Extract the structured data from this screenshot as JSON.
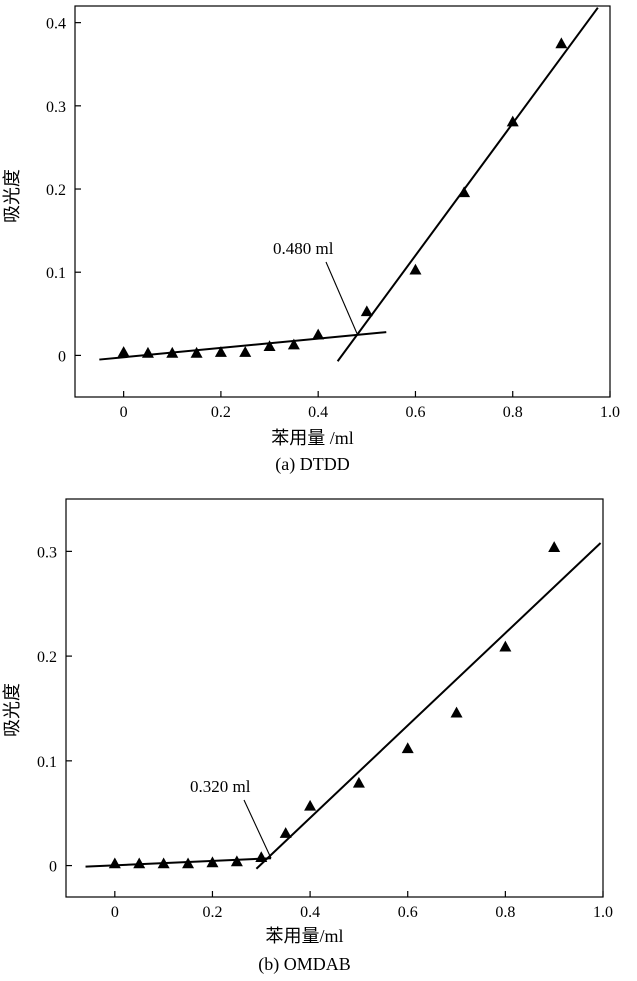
{
  "chart_data": [
    {
      "type": "scatter",
      "caption": "(a) DTDD",
      "xlabel": "苯用量 /ml",
      "ylabel": "吸光度",
      "xlim": [
        -0.1,
        1.0
      ],
      "ylim": [
        -0.05,
        0.42
      ],
      "xticks": [
        0,
        0.2,
        0.4,
        0.6,
        0.8,
        1.0
      ],
      "xtick_labels": [
        "0",
        "0.2",
        "0.4",
        "0.6",
        "0.8",
        "1.0"
      ],
      "yticks": [
        0,
        0.1,
        0.2,
        0.3,
        0.4
      ],
      "ytick_labels": [
        "0",
        "0.1",
        "0.2",
        "0.3",
        "0.4"
      ],
      "grid": false,
      "marker": "triangle",
      "points": {
        "x": [
          0,
          0.05,
          0.1,
          0.15,
          0.2,
          0.25,
          0.3,
          0.35,
          0.4,
          0.5,
          0.6,
          0.7,
          0.8,
          0.9
        ],
        "y": [
          0.004,
          0.003,
          0.003,
          0.003,
          0.004,
          0.004,
          0.011,
          0.013,
          0.025,
          0.053,
          0.103,
          0.196,
          0.281,
          0.375
        ]
      },
      "fit_lines": [
        {
          "x": [
            -0.05,
            0.54
          ],
          "y": [
            -0.005,
            0.028
          ]
        },
        {
          "x": [
            0.44,
            0.975
          ],
          "y": [
            -0.007,
            0.418
          ]
        }
      ],
      "annotation": {
        "text": "0.480 ml",
        "x": 0.48,
        "y": 0.026
      }
    },
    {
      "type": "scatter",
      "caption": "(b) OMDAB",
      "xlabel": "苯用量/ml",
      "ylabel": "吸光度",
      "xlim": [
        -0.1,
        1.0
      ],
      "ylim": [
        -0.03,
        0.35
      ],
      "xticks": [
        0,
        0.2,
        0.4,
        0.6,
        0.8,
        1.0
      ],
      "xtick_labels": [
        "0",
        "0.2",
        "0.4",
        "0.6",
        "0.8",
        "1.0"
      ],
      "yticks": [
        0,
        0.1,
        0.2,
        0.3
      ],
      "ytick_labels": [
        "0",
        "0.1",
        "0.2",
        "0.3"
      ],
      "grid": false,
      "marker": "triangle",
      "points": {
        "x": [
          0,
          0.05,
          0.1,
          0.15,
          0.2,
          0.25,
          0.3,
          0.35,
          0.4,
          0.5,
          0.6,
          0.7,
          0.8,
          0.9
        ],
        "y": [
          0.002,
          0.002,
          0.002,
          0.002,
          0.003,
          0.004,
          0.008,
          0.031,
          0.057,
          0.079,
          0.112,
          0.146,
          0.209,
          0.304
        ]
      },
      "fit_lines": [
        {
          "x": [
            -0.06,
            0.32
          ],
          "y": [
            -0.001,
            0.007
          ]
        },
        {
          "x": [
            0.29,
            0.995
          ],
          "y": [
            -0.003,
            0.308
          ]
        }
      ],
      "annotation": {
        "text": "0.320 ml",
        "x": 0.32,
        "y": 0.007
      }
    }
  ]
}
